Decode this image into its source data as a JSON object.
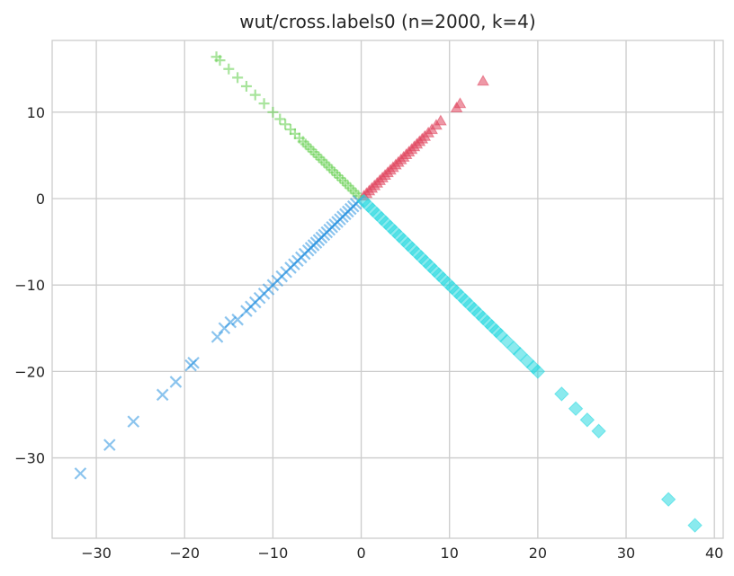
{
  "chart_data": {
    "type": "scatter",
    "title": "wut/cross.labels0 (n=2000, k=4)",
    "xlabel": "",
    "ylabel": "",
    "xlim": [
      -35,
      41
    ],
    "ylim": [
      -39.3,
      18.3
    ],
    "grid": true,
    "x_ticks": [
      -30,
      -20,
      -10,
      0,
      10,
      20,
      30,
      40
    ],
    "y_ticks": [
      -30,
      -20,
      -10,
      0,
      10
    ],
    "series": [
      {
        "marker": "triangle",
        "color": "#e0435c",
        "points": [
          [
            0.3,
            0.3
          ],
          [
            0.6,
            0.6
          ],
          [
            0.9,
            0.9
          ],
          [
            1.2,
            1.2
          ],
          [
            1.5,
            1.5
          ],
          [
            1.8,
            1.8
          ],
          [
            2.1,
            2.1
          ],
          [
            2.4,
            2.4
          ],
          [
            2.7,
            2.7
          ],
          [
            3.0,
            3.0
          ],
          [
            3.3,
            3.3
          ],
          [
            3.6,
            3.6
          ],
          [
            3.9,
            3.9
          ],
          [
            4.2,
            4.2
          ],
          [
            4.5,
            4.5
          ],
          [
            4.8,
            4.8
          ],
          [
            5.1,
            5.1
          ],
          [
            5.4,
            5.4
          ],
          [
            5.7,
            5.7
          ],
          [
            6.0,
            6.0
          ],
          [
            6.3,
            6.3
          ],
          [
            6.6,
            6.6
          ],
          [
            6.9,
            6.9
          ],
          [
            7.2,
            7.2
          ],
          [
            7.6,
            7.6
          ],
          [
            8.0,
            8.0
          ],
          [
            8.5,
            8.5
          ],
          [
            9.0,
            9.0
          ],
          [
            10.8,
            10.5
          ],
          [
            11.2,
            11.0
          ],
          [
            13.8,
            13.6
          ]
        ]
      },
      {
        "marker": "plus",
        "color": "#60cd4b",
        "points": [
          [
            -0.3,
            0.3
          ],
          [
            -0.6,
            0.6
          ],
          [
            -0.9,
            0.9
          ],
          [
            -1.2,
            1.2
          ],
          [
            -1.5,
            1.5
          ],
          [
            -1.8,
            1.8
          ],
          [
            -2.1,
            2.1
          ],
          [
            -2.4,
            2.4
          ],
          [
            -2.7,
            2.7
          ],
          [
            -3.0,
            3.0
          ],
          [
            -3.3,
            3.3
          ],
          [
            -3.6,
            3.6
          ],
          [
            -3.9,
            3.9
          ],
          [
            -4.2,
            4.2
          ],
          [
            -4.5,
            4.5
          ],
          [
            -4.8,
            4.8
          ],
          [
            -5.1,
            5.1
          ],
          [
            -5.4,
            5.4
          ],
          [
            -5.7,
            5.7
          ],
          [
            -6.0,
            6.0
          ],
          [
            -6.3,
            6.3
          ],
          [
            -6.6,
            6.6
          ],
          [
            -7.0,
            7.0
          ],
          [
            -7.5,
            7.5
          ],
          [
            -8.0,
            8.0
          ],
          [
            -8.6,
            8.6
          ],
          [
            -9.2,
            9.2
          ],
          [
            -10.0,
            10.0
          ],
          [
            -11.0,
            11.0
          ],
          [
            -12.0,
            12.0
          ],
          [
            -13.0,
            13.0
          ],
          [
            -14.0,
            14.0
          ],
          [
            -15.0,
            15.0
          ],
          [
            -16.0,
            16.0
          ],
          [
            -16.4,
            16.4
          ]
        ]
      },
      {
        "marker": "x",
        "color": "#2b93e0",
        "points": [
          [
            -0.3,
            -0.3
          ],
          [
            -0.6,
            -0.6
          ],
          [
            -0.9,
            -0.9
          ],
          [
            -1.2,
            -1.2
          ],
          [
            -1.5,
            -1.5
          ],
          [
            -1.8,
            -1.8
          ],
          [
            -2.1,
            -2.1
          ],
          [
            -2.4,
            -2.4
          ],
          [
            -2.7,
            -2.7
          ],
          [
            -3.0,
            -3.0
          ],
          [
            -3.3,
            -3.3
          ],
          [
            -3.6,
            -3.6
          ],
          [
            -3.9,
            -3.9
          ],
          [
            -4.2,
            -4.2
          ],
          [
            -4.5,
            -4.5
          ],
          [
            -4.8,
            -4.8
          ],
          [
            -5.1,
            -5.1
          ],
          [
            -5.4,
            -5.4
          ],
          [
            -5.7,
            -5.7
          ],
          [
            -6.0,
            -6.0
          ],
          [
            -6.4,
            -6.4
          ],
          [
            -6.8,
            -6.8
          ],
          [
            -7.2,
            -7.2
          ],
          [
            -7.6,
            -7.6
          ],
          [
            -8.0,
            -8.0
          ],
          [
            -8.5,
            -8.5
          ],
          [
            -9.0,
            -9.0
          ],
          [
            -9.5,
            -9.5
          ],
          [
            -10.0,
            -10.0
          ],
          [
            -10.5,
            -10.5
          ],
          [
            -11.0,
            -11.0
          ],
          [
            -11.5,
            -11.5
          ],
          [
            -12.0,
            -12.0
          ],
          [
            -12.5,
            -12.5
          ],
          [
            -13.0,
            -13.0
          ],
          [
            -14.0,
            -14.0
          ],
          [
            -14.8,
            -14.3
          ],
          [
            -15.5,
            -15.0
          ],
          [
            -16.3,
            -16.0
          ],
          [
            -19.0,
            -19.0
          ],
          [
            -19.3,
            -19.3
          ],
          [
            -21.0,
            -21.2
          ],
          [
            -22.5,
            -22.7
          ],
          [
            -25.8,
            -25.8
          ],
          [
            -28.5,
            -28.5
          ],
          [
            -31.8,
            -31.8
          ]
        ]
      },
      {
        "marker": "diamond",
        "color": "#2ad9e0",
        "points": [
          [
            0.3,
            -0.3
          ],
          [
            0.8,
            -0.8
          ],
          [
            1.3,
            -1.3
          ],
          [
            1.8,
            -1.8
          ],
          [
            2.3,
            -2.3
          ],
          [
            2.8,
            -2.8
          ],
          [
            3.3,
            -3.3
          ],
          [
            3.8,
            -3.8
          ],
          [
            4.3,
            -4.3
          ],
          [
            4.8,
            -4.8
          ],
          [
            5.3,
            -5.3
          ],
          [
            5.8,
            -5.8
          ],
          [
            6.3,
            -6.3
          ],
          [
            6.8,
            -6.8
          ],
          [
            7.3,
            -7.3
          ],
          [
            7.8,
            -7.8
          ],
          [
            8.3,
            -8.3
          ],
          [
            8.8,
            -8.8
          ],
          [
            9.3,
            -9.3
          ],
          [
            9.8,
            -9.8
          ],
          [
            10.3,
            -10.3
          ],
          [
            10.8,
            -10.8
          ],
          [
            11.3,
            -11.3
          ],
          [
            11.8,
            -11.8
          ],
          [
            12.3,
            -12.3
          ],
          [
            12.8,
            -12.8
          ],
          [
            13.3,
            -13.3
          ],
          [
            13.8,
            -13.8
          ],
          [
            14.3,
            -14.3
          ],
          [
            14.8,
            -14.8
          ],
          [
            15.3,
            -15.3
          ],
          [
            15.8,
            -15.8
          ],
          [
            16.5,
            -16.5
          ],
          [
            17.3,
            -17.3
          ],
          [
            18.0,
            -18.0
          ],
          [
            18.8,
            -18.8
          ],
          [
            19.5,
            -19.5
          ],
          [
            20.0,
            -20.0
          ],
          [
            22.7,
            -22.6
          ],
          [
            24.3,
            -24.3
          ],
          [
            25.6,
            -25.6
          ],
          [
            26.9,
            -26.9
          ],
          [
            34.8,
            -34.8
          ],
          [
            37.8,
            -37.8
          ]
        ]
      }
    ]
  }
}
